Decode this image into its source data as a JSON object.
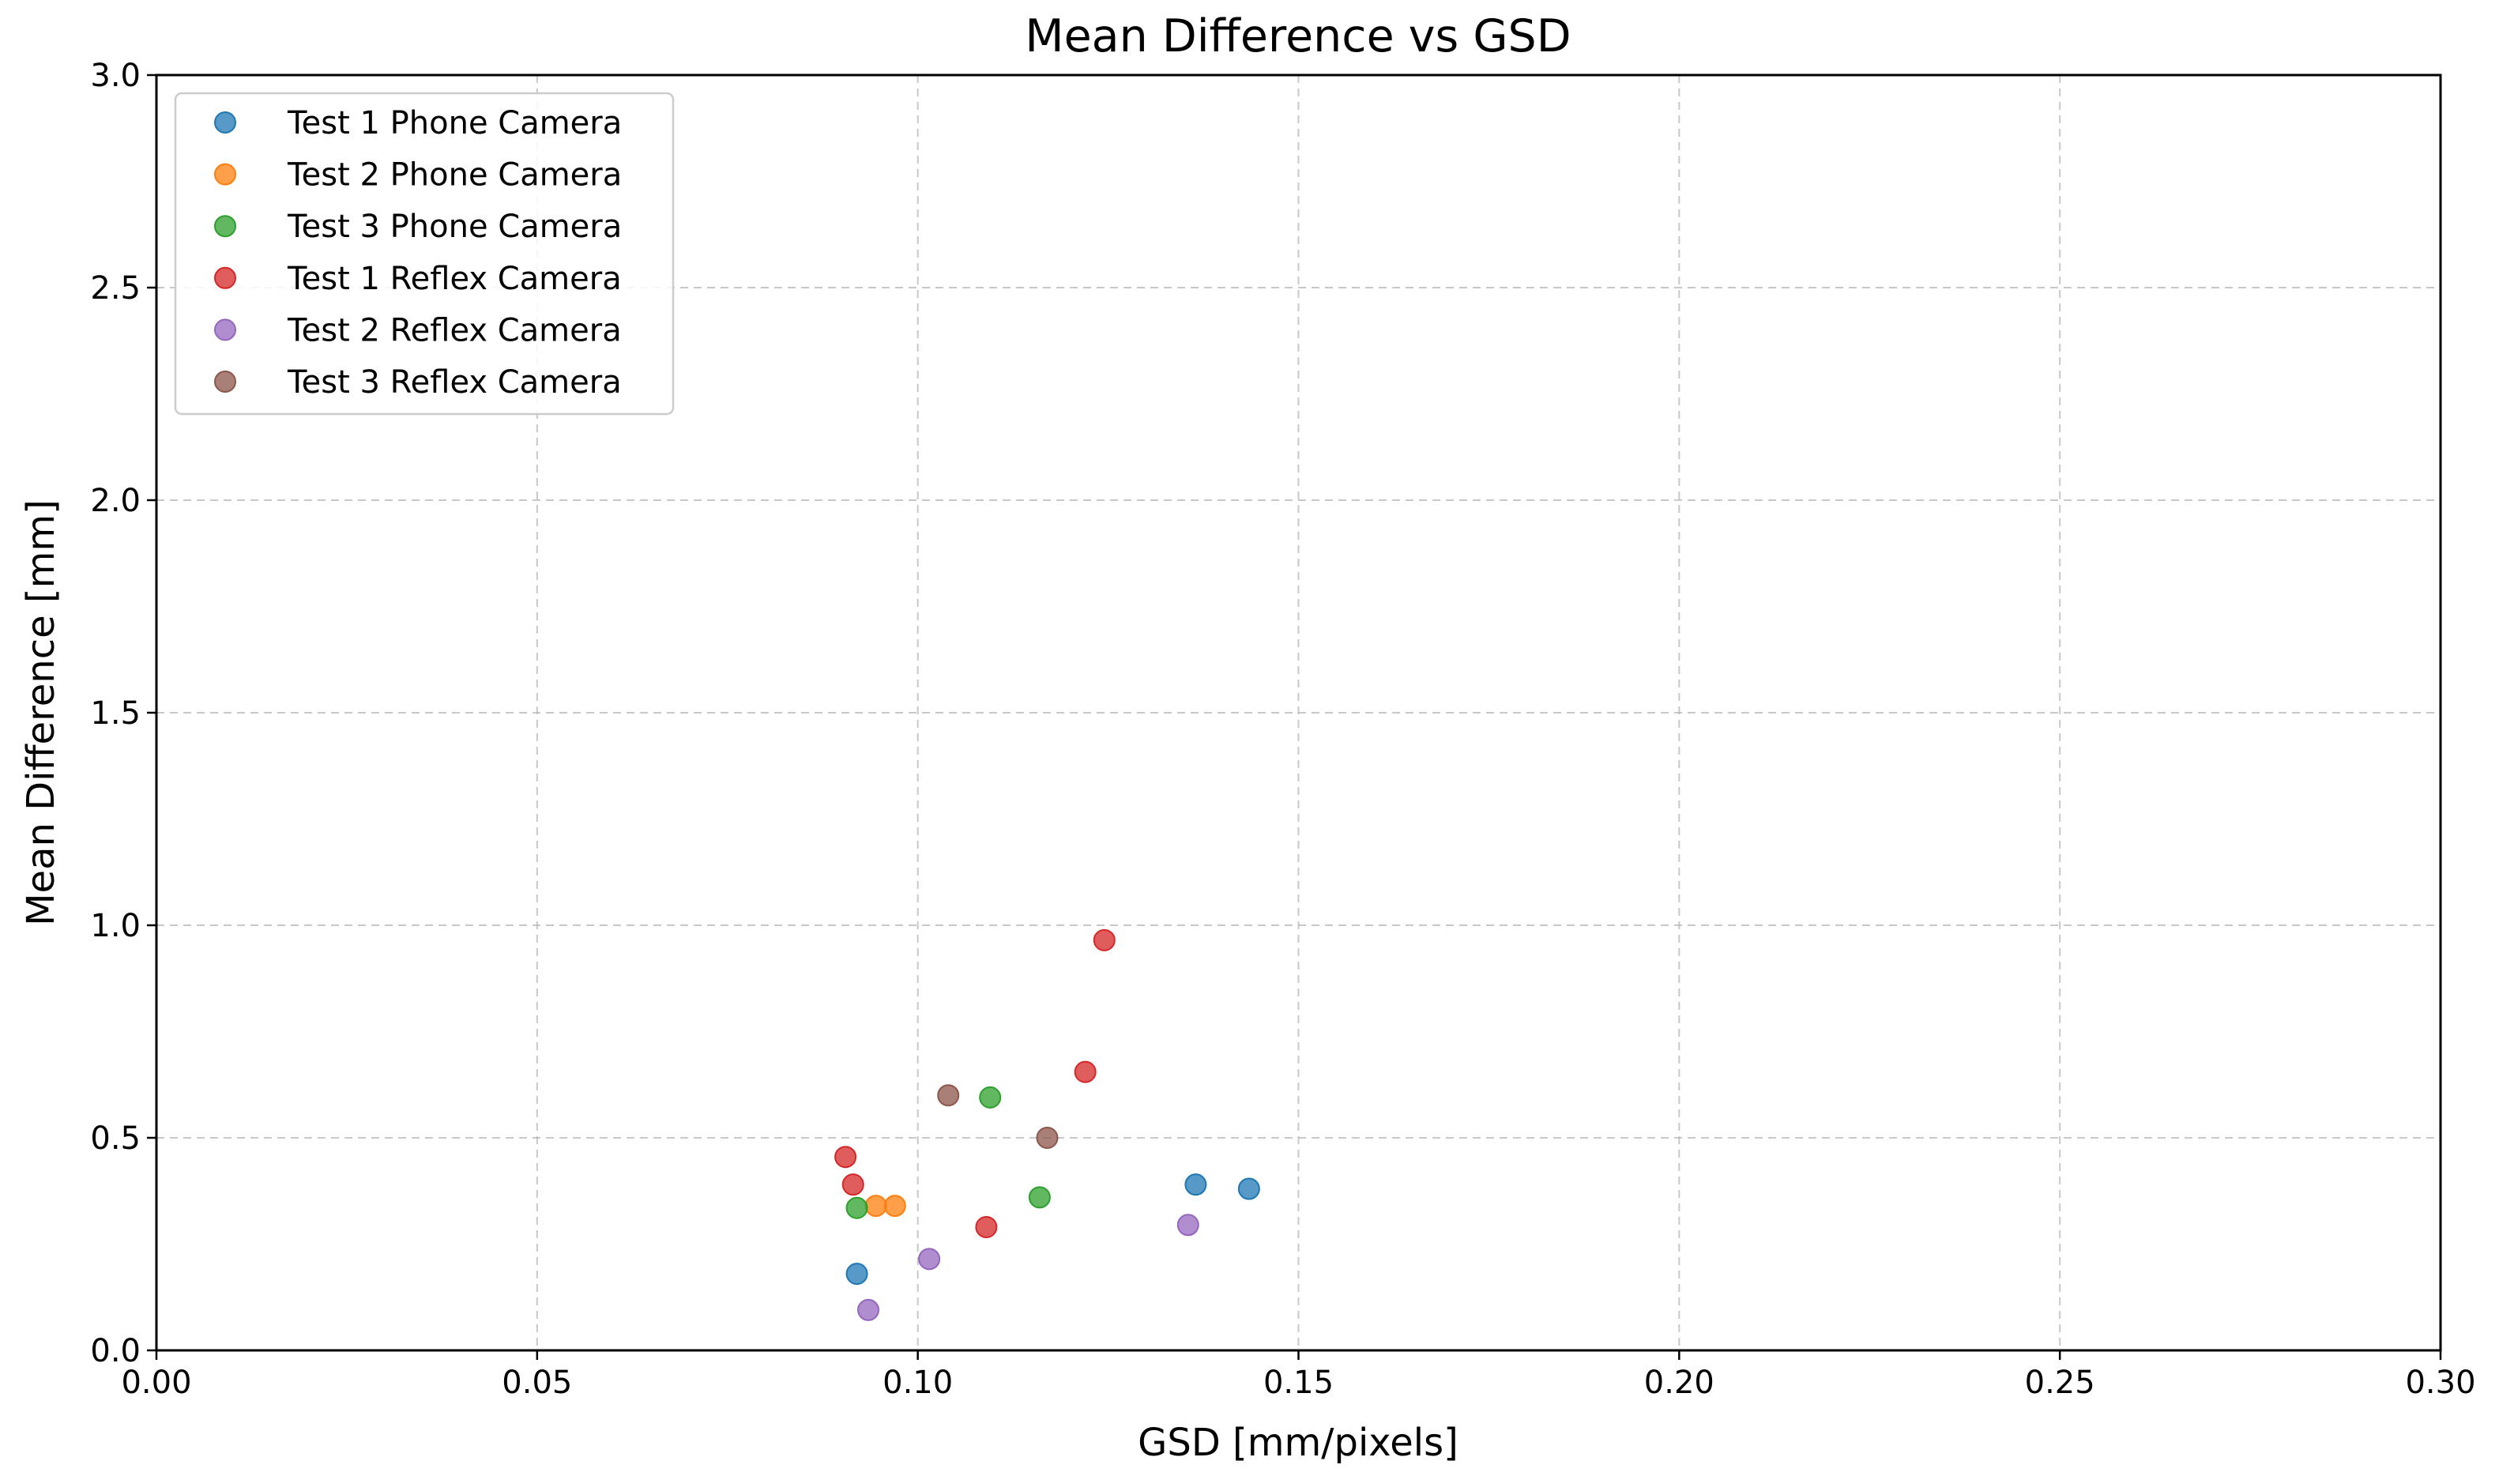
{
  "chart_data": {
    "type": "scatter",
    "title": "Mean Difference vs GSD",
    "xlabel": "GSD [mm/pixels]",
    "ylabel": "Mean Difference [mm]",
    "xlim": [
      0.0,
      0.3
    ],
    "ylim": [
      0.0,
      3.0
    ],
    "xticks": [
      "0.00",
      "0.05",
      "0.10",
      "0.15",
      "0.20",
      "0.25",
      "0.30"
    ],
    "yticks": [
      "0.0",
      "0.5",
      "1.0",
      "1.5",
      "2.0",
      "2.5",
      "3.0"
    ],
    "grid": true,
    "legend_position": "top-left",
    "series": [
      {
        "name": "Test 1 Phone Camera",
        "color": "#1f77b4",
        "points": [
          [
            0.092,
            0.18
          ],
          [
            0.1365,
            0.39
          ],
          [
            0.1435,
            0.38
          ]
        ]
      },
      {
        "name": "Test 2 Phone Camera",
        "color": "#ff7f0e",
        "points": [
          [
            0.0945,
            0.34
          ],
          [
            0.097,
            0.34
          ]
        ]
      },
      {
        "name": "Test 3 Phone Camera",
        "color": "#2ca02c",
        "points": [
          [
            0.092,
            0.335
          ],
          [
            0.1095,
            0.595
          ],
          [
            0.116,
            0.36
          ]
        ]
      },
      {
        "name": "Test 1 Reflex Camera",
        "color": "#d62728",
        "points": [
          [
            0.0905,
            0.455
          ],
          [
            0.0915,
            0.39
          ],
          [
            0.109,
            0.29
          ],
          [
            0.122,
            0.655
          ],
          [
            0.1245,
            0.965
          ]
        ]
      },
      {
        "name": "Test 2 Reflex Camera",
        "color": "#9467bd",
        "points": [
          [
            0.0935,
            0.095
          ],
          [
            0.1015,
            0.215
          ],
          [
            0.1355,
            0.295
          ]
        ]
      },
      {
        "name": "Test 3 Reflex Camera",
        "color": "#8c564b",
        "points": [
          [
            0.104,
            0.6
          ],
          [
            0.117,
            0.5
          ]
        ]
      }
    ]
  }
}
